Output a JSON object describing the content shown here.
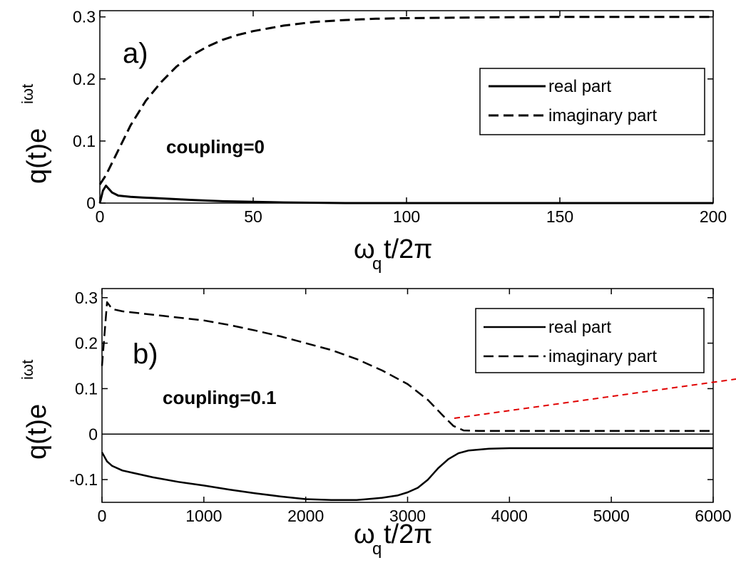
{
  "chart_data": [
    {
      "type": "line",
      "panel_label": "a)",
      "annotation": "coupling=0",
      "xlabel": {
        "main": "ω",
        "sub": "q",
        "rest": "t/2π"
      },
      "ylabel": {
        "main": "q(t)e",
        "sup": "iωt"
      },
      "xlim": [
        0,
        200
      ],
      "ylim": [
        0,
        0.31
      ],
      "xticks": [
        "0",
        "50",
        "100",
        "150",
        "200"
      ],
      "xtick_values": [
        0,
        50,
        100,
        150,
        200
      ],
      "yticks": [
        "0",
        "0.1",
        "0.2",
        "0.3"
      ],
      "ytick_values": [
        0,
        0.1,
        0.2,
        0.3
      ],
      "grid": false,
      "legend": {
        "placement": "right",
        "entries": [
          "real part",
          "imaginary part"
        ]
      },
      "series": [
        {
          "name": "real part",
          "style": "solid",
          "x": [
            0,
            1,
            2,
            4,
            6,
            8,
            10,
            14,
            18,
            22,
            26,
            30,
            35,
            40,
            50,
            60,
            80,
            100,
            150,
            200
          ],
          "y": [
            0.0,
            0.02,
            0.028,
            0.017,
            0.012,
            0.011,
            0.01,
            0.009,
            0.008,
            0.007,
            0.006,
            0.005,
            0.004,
            0.003,
            0.002,
            0.001,
            0.0,
            0.0,
            0.0,
            0.0
          ]
        },
        {
          "name": "imaginary part",
          "style": "dashed",
          "x": [
            0,
            2,
            5,
            10,
            15,
            20,
            25,
            30,
            35,
            40,
            45,
            50,
            60,
            70,
            80,
            90,
            100,
            120,
            150,
            200
          ],
          "y": [
            0.03,
            0.045,
            0.075,
            0.125,
            0.165,
            0.195,
            0.22,
            0.238,
            0.252,
            0.263,
            0.271,
            0.277,
            0.286,
            0.292,
            0.295,
            0.297,
            0.298,
            0.299,
            0.3,
            0.3
          ]
        }
      ]
    },
    {
      "type": "line",
      "panel_label": "b)",
      "annotation": "coupling=0.1",
      "xlabel": {
        "main": "ω",
        "sub": "q",
        "rest": "t/2π"
      },
      "ylabel": {
        "main": "q(t)e",
        "sup": "iωt"
      },
      "xlim": [
        0,
        6000
      ],
      "ylim": [
        -0.15,
        0.32
      ],
      "xticks": [
        "0",
        "1000",
        "2000",
        "3000",
        "4000",
        "5000",
        "6000"
      ],
      "xtick_values": [
        0,
        1000,
        2000,
        3000,
        4000,
        5000,
        6000
      ],
      "yticks": [
        "-0.1",
        "0",
        "0.1",
        "0.2",
        "0.3"
      ],
      "ytick_values": [
        -0.1,
        0,
        0.1,
        0.2,
        0.3
      ],
      "grid": false,
      "zero_line": true,
      "legend": {
        "placement": "top-right",
        "entries": [
          "real part",
          "imaginary part"
        ]
      },
      "series": [
        {
          "name": "real part",
          "style": "solid",
          "x": [
            0,
            50,
            100,
            200,
            300,
            500,
            750,
            1000,
            1250,
            1500,
            1750,
            2000,
            2250,
            2500,
            2750,
            2900,
            3000,
            3100,
            3200,
            3300,
            3400,
            3500,
            3600,
            3700,
            3800,
            4000,
            4500,
            5000,
            6000
          ],
          "y": [
            -0.04,
            -0.06,
            -0.07,
            -0.08,
            -0.085,
            -0.095,
            -0.105,
            -0.113,
            -0.122,
            -0.13,
            -0.137,
            -0.143,
            -0.145,
            -0.145,
            -0.14,
            -0.135,
            -0.128,
            -0.118,
            -0.1,
            -0.075,
            -0.055,
            -0.042,
            -0.036,
            -0.034,
            -0.032,
            -0.031,
            -0.031,
            -0.031,
            -0.031
          ]
        },
        {
          "name": "imaginary part",
          "style": "dashed",
          "x": [
            0,
            50,
            100,
            200,
            400,
            600,
            800,
            1000,
            1250,
            1500,
            1750,
            2000,
            2250,
            2500,
            2750,
            3000,
            3200,
            3350,
            3450,
            3550,
            3700,
            4000,
            5000,
            6000
          ],
          "y": [
            0.15,
            0.29,
            0.275,
            0.27,
            0.265,
            0.26,
            0.255,
            0.25,
            0.24,
            0.228,
            0.215,
            0.2,
            0.185,
            0.165,
            0.14,
            0.11,
            0.075,
            0.04,
            0.018,
            0.008,
            0.007,
            0.007,
            0.007,
            0.007
          ]
        }
      ]
    }
  ],
  "colors": {
    "axes": "#000000",
    "annotation_arrow": "#e00000",
    "background": "#ffffff"
  }
}
